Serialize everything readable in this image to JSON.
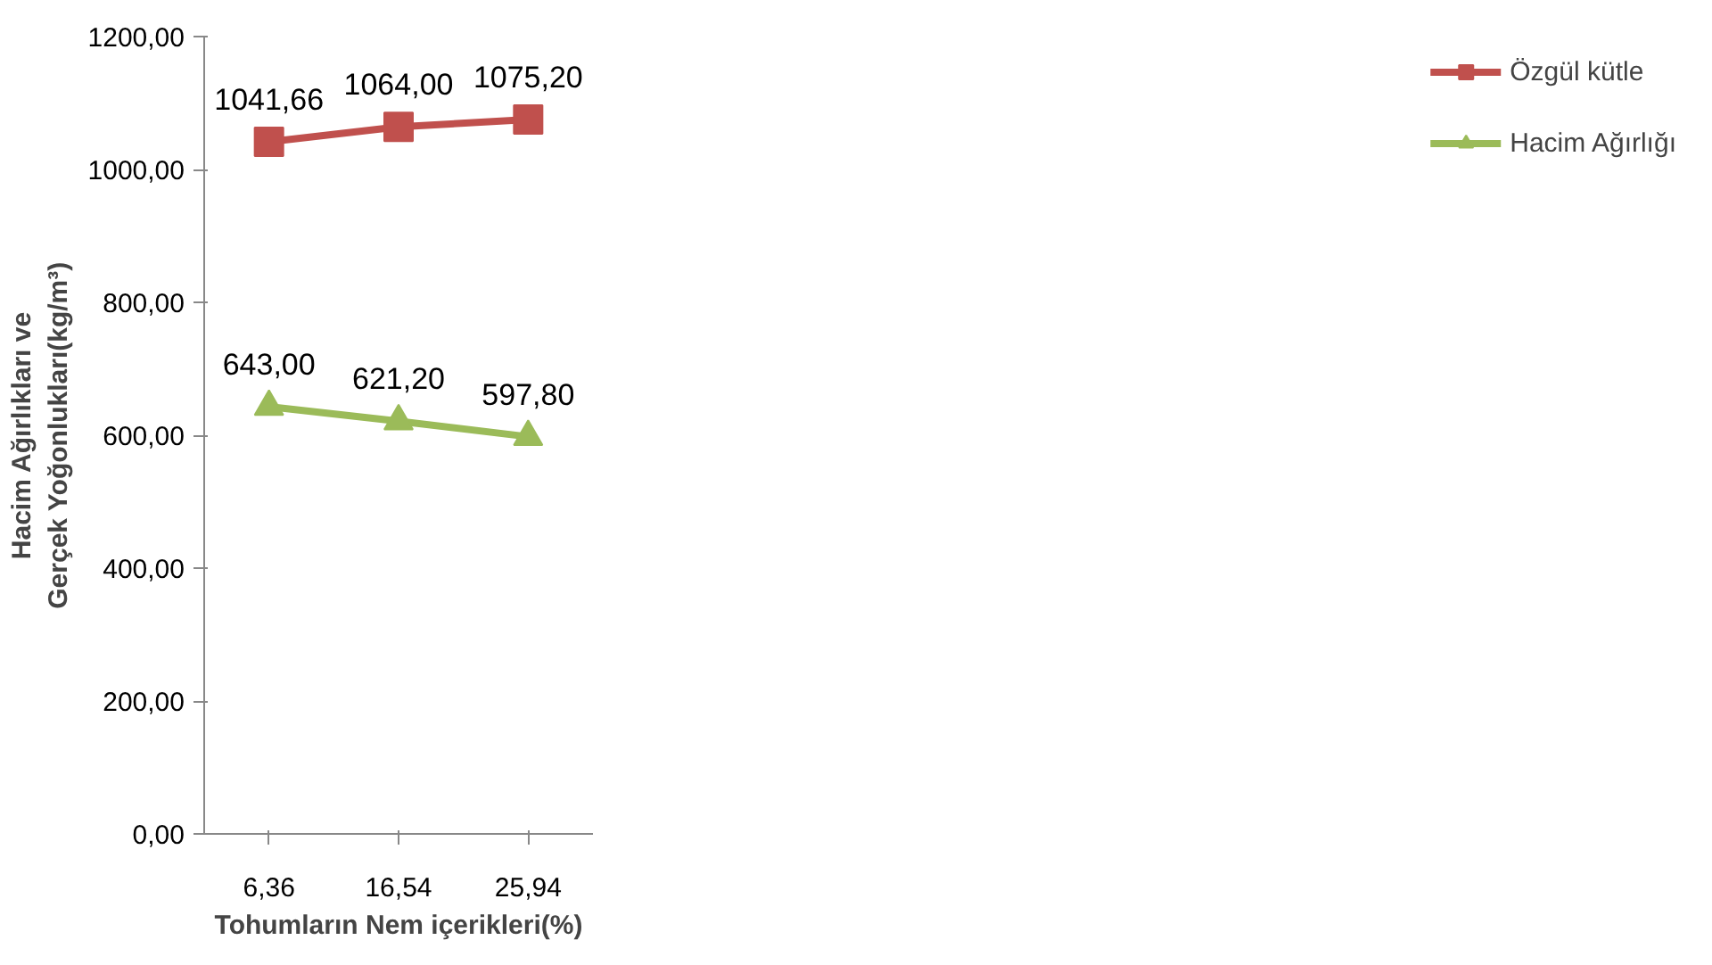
{
  "chart_data": {
    "type": "line",
    "xlabel": "Tohumların Nem içerikleri(%)",
    "ylabel": "Hacim Ağırlıkları ve Gerçek Yoğonlukları(kg/m³)",
    "categories": [
      "6,36",
      "16,54",
      "25,94"
    ],
    "series": [
      {
        "name": "Özgül kütle",
        "color": "#c0504d",
        "marker": "square",
        "values": [
          1041.66,
          1064.0,
          1075.2
        ],
        "value_labels": [
          "1041,66",
          "1064,00",
          "1075,20"
        ]
      },
      {
        "name": "Hacim Ağırlığı",
        "color": "#9bbb59",
        "marker": "triangle",
        "values": [
          643.0,
          621.2,
          597.8
        ],
        "value_labels": [
          "643,00",
          "621,20",
          "597,80"
        ]
      }
    ],
    "ylim": [
      0,
      1200
    ],
    "yticks": [
      {
        "value": 0,
        "label": "0,00"
      },
      {
        "value": 200,
        "label": "200,00"
      },
      {
        "value": 400,
        "label": "400,00"
      },
      {
        "value": 600,
        "label": "600,00"
      },
      {
        "value": 800,
        "label": "800,00"
      },
      {
        "value": 1000,
        "label": "1000,00"
      },
      {
        "value": 1200,
        "label": "1200,00"
      }
    ],
    "grid": false,
    "legend": "right"
  }
}
